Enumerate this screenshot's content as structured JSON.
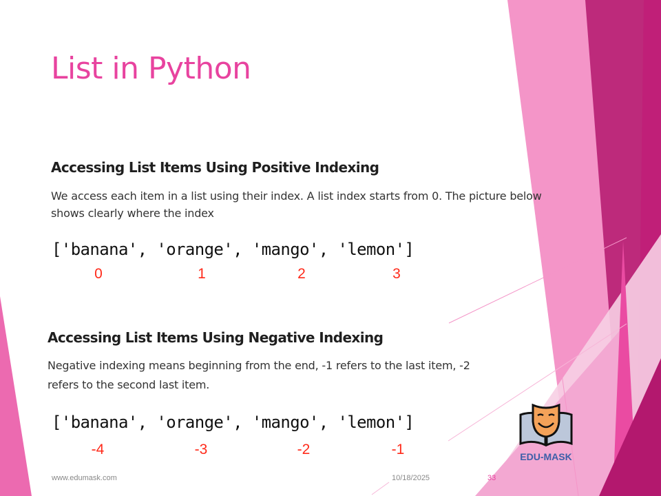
{
  "slide": {
    "title": "List in Python",
    "section1": {
      "heading": "Accessing List Items Using Positive Indexing",
      "para_line1": "We access each item in a list using their index. A list index starts from 0. The picture below",
      "para_line2": "shows clearly where the index",
      "code": "['banana', 'orange', 'mango', 'lemon']",
      "indices": [
        "0",
        "1",
        "2",
        "3"
      ]
    },
    "section2": {
      "heading": "Accessing List Items Using Negative Indexing",
      "para_line1": "Negative indexing means beginning from the end, -1 refers to the last item, -2",
      "para_line2": "refers to the second last item.",
      "code": "['banana', 'orange', 'mango', 'lemon']",
      "indices": [
        "-4",
        "-3",
        "-2",
        "-1"
      ]
    },
    "footer": {
      "website": "www.edumask.com",
      "date": "10/18/2025",
      "page": "33"
    },
    "logo": {
      "text": "EDU-MASK",
      "icon": "theater-mask-book-icon"
    },
    "colors": {
      "accent": "#e8439f",
      "index": "#ff2a1a",
      "logo": "#3c5fa8"
    }
  }
}
